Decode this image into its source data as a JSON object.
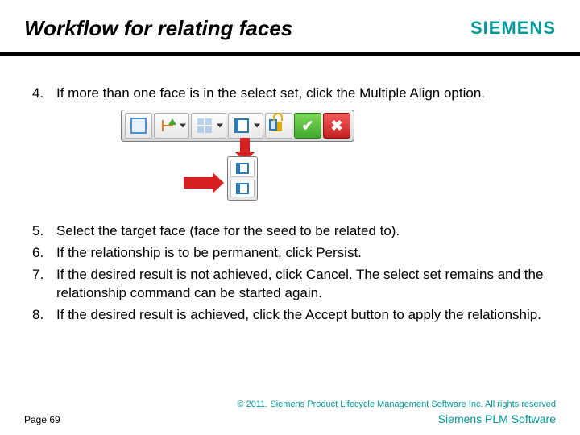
{
  "header": {
    "title": "Workflow for relating faces",
    "logo_text": "SIEMENS",
    "logo_color": "#009999",
    "underline_color": "#000000"
  },
  "steps": [
    {
      "num": "4.",
      "text": "If more than one face is in the select set, click the Multiple Align option."
    },
    {
      "num": "5.",
      "text": "Select the target face (face for the seed to be related to)."
    },
    {
      "num": "6.",
      "text": "If the relationship is to be permanent, click Persist."
    },
    {
      "num": "7.",
      "text": "If the desired result is not achieved, click Cancel. The select set remains and the relationship command can be started again."
    },
    {
      "num": "8.",
      "text": "If the desired result is achieved, click the Accept button to apply the relationship."
    }
  ],
  "toolbar": {
    "background_gradient": [
      "#f8f8f8",
      "#d8d8d8"
    ],
    "border_color": "#7a7a7a",
    "buttons": [
      {
        "name": "select-face",
        "has_dropdown": false,
        "icon": "square"
      },
      {
        "name": "align",
        "has_dropdown": true,
        "icon": "align"
      },
      {
        "name": "pattern",
        "has_dropdown": true,
        "icon": "grid"
      },
      {
        "name": "multiple-align",
        "has_dropdown": true,
        "icon": "face",
        "highlighted": true
      },
      {
        "name": "persist",
        "has_dropdown": false,
        "icon": "lock"
      },
      {
        "name": "accept",
        "has_dropdown": false,
        "icon": "check",
        "bg": "green"
      },
      {
        "name": "cancel",
        "has_dropdown": false,
        "icon": "x",
        "bg": "red"
      }
    ],
    "dropdown_items": [
      {
        "name": "single-align-option",
        "icon": "face-single"
      },
      {
        "name": "multiple-align-option",
        "icon": "face-multi"
      }
    ]
  },
  "arrows": {
    "color": "#d62020"
  },
  "footer": {
    "copyright": "© 2011. Siemens Product Lifecycle Management Software Inc. All rights reserved",
    "page": "Page 69",
    "brand": "Siemens PLM Software",
    "accent_color": "#009999"
  }
}
